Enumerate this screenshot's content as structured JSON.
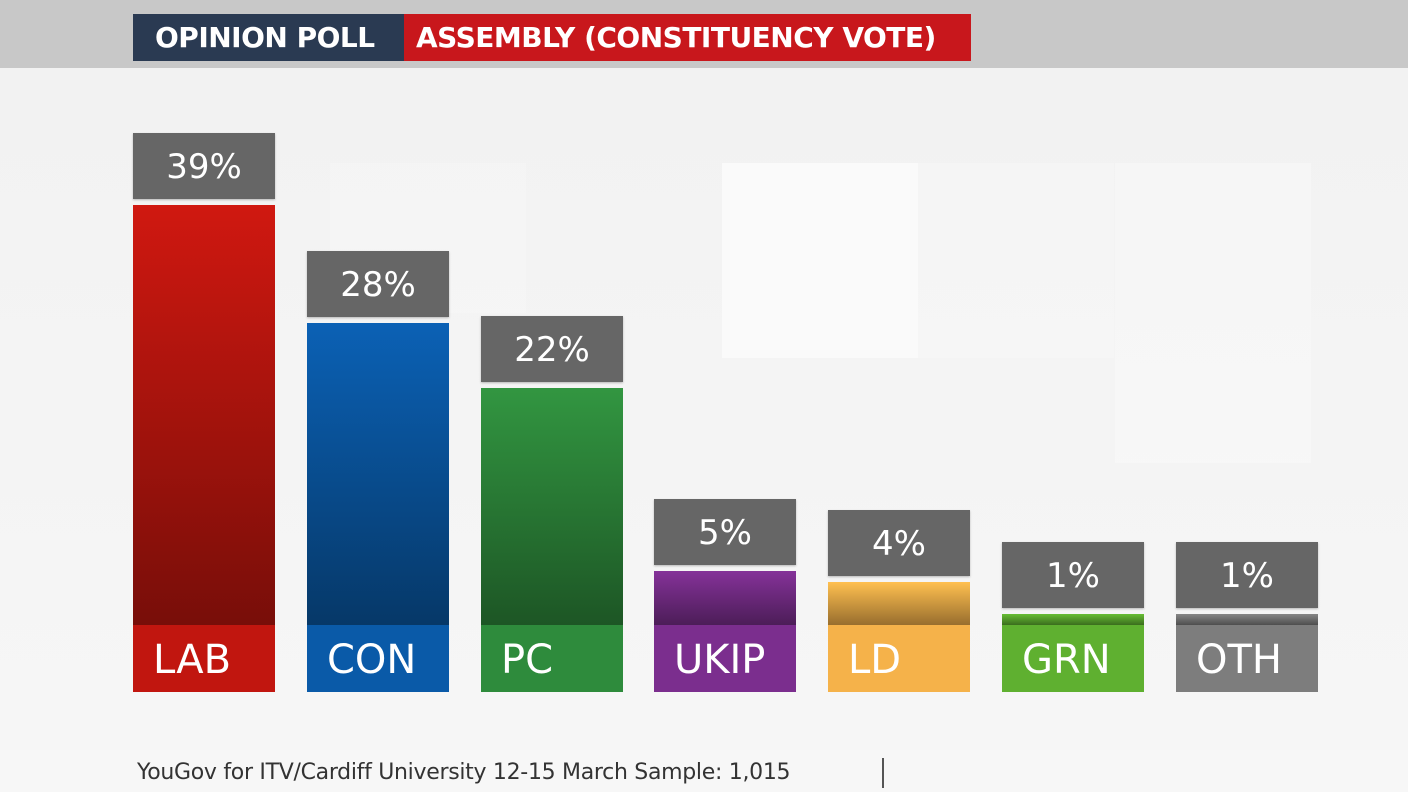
{
  "header": {
    "tag_left": "OPINION POLL",
    "tag_right": "ASSEMBLY (CONSTITUENCY VOTE)"
  },
  "footer": {
    "source": "YouGov for ITV/Cardiff University 12-15 March Sample: 1,015"
  },
  "chart_data": {
    "type": "bar",
    "title": "ASSEMBLY (CONSTITUENCY VOTE)",
    "xlabel": "",
    "ylabel": "",
    "ylim": [
      0,
      39
    ],
    "categories": [
      "LAB",
      "CON",
      "PC",
      "UKIP",
      "LD",
      "GRN",
      "OTH"
    ],
    "values": [
      39,
      28,
      22,
      5,
      4,
      1,
      1
    ],
    "value_labels": [
      "39%",
      "28%",
      "22%",
      "5%",
      "4%",
      "1%",
      "1%"
    ],
    "colors": [
      "#c1160f",
      "#0a5aa8",
      "#2e8b3c",
      "#7b2e8e",
      "#f5b24a",
      "#5fb030",
      "#7d7d7d"
    ]
  }
}
